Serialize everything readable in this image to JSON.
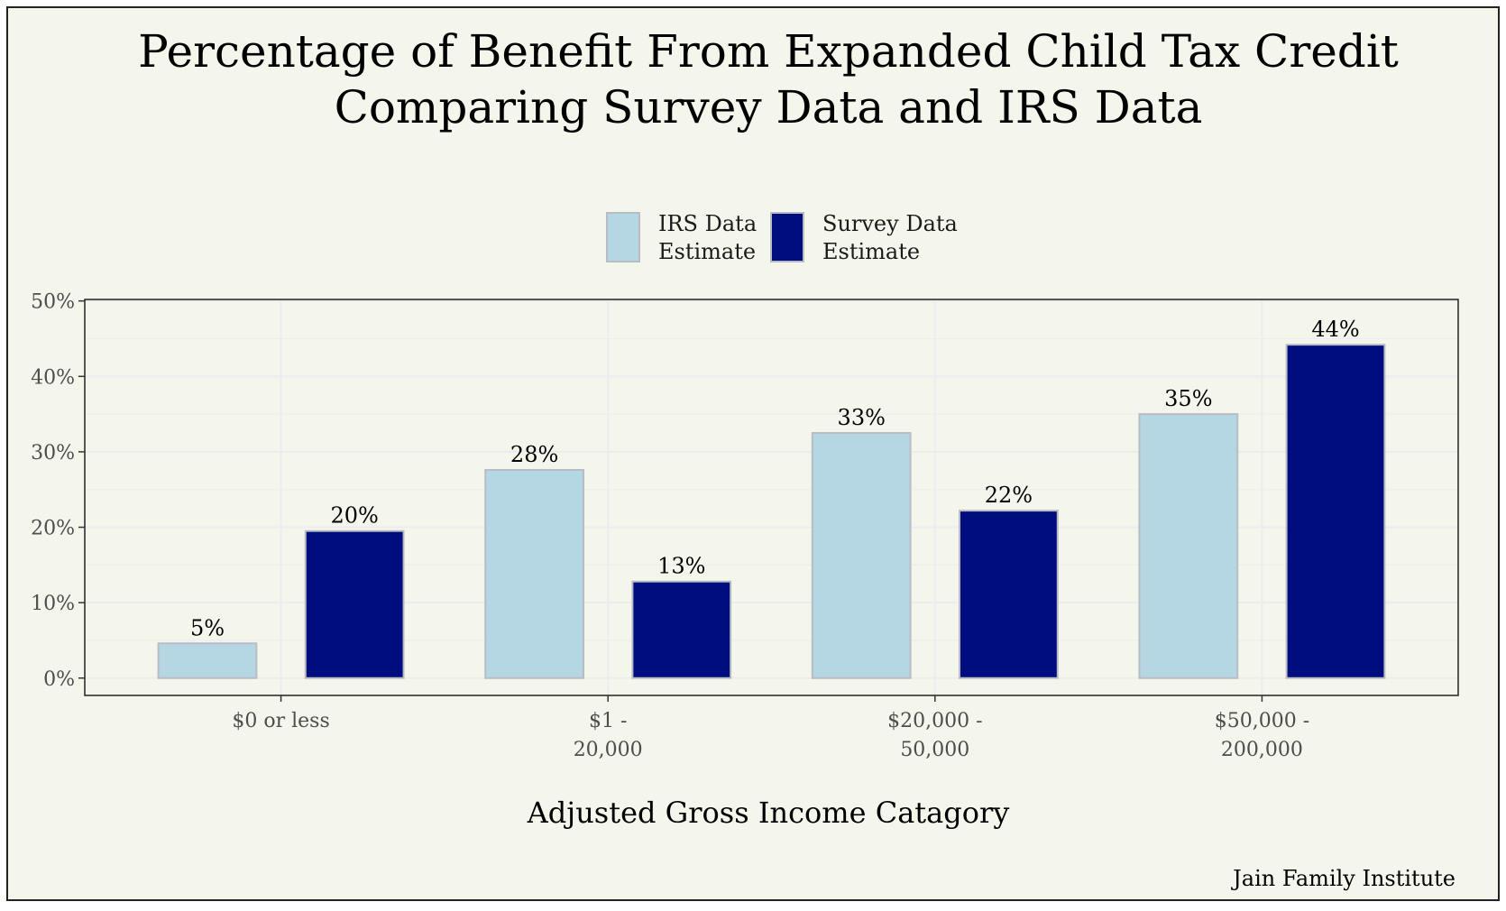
{
  "chart_data": {
    "type": "bar",
    "title": [
      "Percentage of Benefit From Expanded Child Tax Credit",
      "Comparing Survey Data and IRS Data"
    ],
    "xlabel": "Adjusted Gross Income Catagory",
    "ylabel": "",
    "caption": "Jain Family Institute",
    "categories": [
      [
        "$0 or less"
      ],
      [
        "$1 -",
        "20,000"
      ],
      [
        "$20,000 -",
        "50,000"
      ],
      [
        "$50,000 -",
        "200,000"
      ]
    ],
    "series": [
      {
        "name": [
          "IRS Data",
          "Estimate"
        ],
        "color": "#b5d6e3",
        "values": [
          4.6,
          27.6,
          32.5,
          35.0
        ],
        "labels": [
          "5%",
          "28%",
          "33%",
          "35%"
        ]
      },
      {
        "name": [
          "Survey Data",
          "Estimate"
        ],
        "color": "#000d7f",
        "values": [
          19.5,
          12.8,
          22.2,
          44.2
        ],
        "labels": [
          "20%",
          "13%",
          "22%",
          "44%"
        ]
      }
    ],
    "ylim": [
      -2.3,
      50.2
    ],
    "yticks": [
      0,
      10,
      20,
      30,
      40,
      50
    ],
    "ytick_labels": [
      "0%",
      "10%",
      "20%",
      "30%",
      "40%",
      "50%"
    ],
    "grid": true,
    "legend_position": "top",
    "background": "#f4f6eb",
    "panel_background": "#f4f6eb",
    "bar_outline": "#b8bcc4",
    "grid_color": "#ebebf0"
  }
}
